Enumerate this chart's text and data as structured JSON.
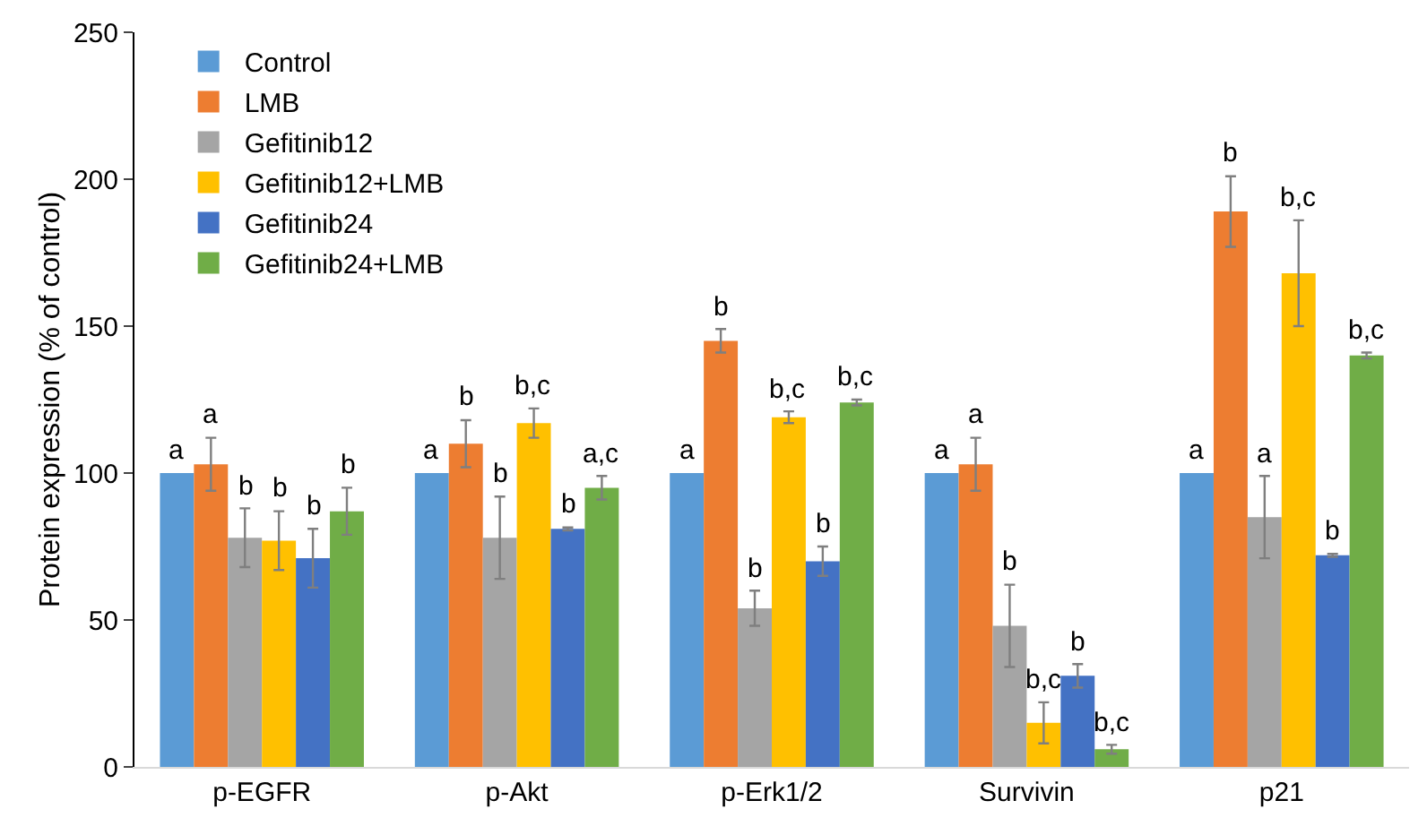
{
  "chart_data": {
    "type": "bar",
    "ylabel": "Protein expression (% of control)",
    "categories": [
      "p-EGFR",
      "p-Akt",
      "p-Erk1/2",
      "Survivin",
      "p21"
    ],
    "series": [
      {
        "name": "Control",
        "color": "#5b9bd5",
        "values": [
          100,
          100,
          100,
          100,
          100
        ],
        "value_labels": [
          "a",
          "a",
          "a",
          "a",
          "a"
        ]
      },
      {
        "name": "LMB",
        "color": "#ed7d31",
        "values": [
          103,
          110,
          145,
          103,
          189
        ],
        "errors": [
          9,
          8,
          4,
          9,
          12
        ],
        "value_labels": [
          "a",
          "b",
          "b",
          "a",
          "b"
        ]
      },
      {
        "name": "Gefitinib12",
        "color": "#a5a5a5",
        "values": [
          78,
          78,
          54,
          48,
          85
        ],
        "errors": [
          10,
          14,
          6,
          14,
          14
        ],
        "value_labels": [
          "b",
          "b",
          "b",
          "b",
          "a"
        ]
      },
      {
        "name": "Gefitinib12+LMB",
        "color": "#ffc000",
        "values": [
          77,
          117,
          119,
          15,
          168
        ],
        "errors": [
          10,
          5,
          2,
          7,
          18
        ],
        "value_labels": [
          "b",
          "b,c",
          "b,c",
          "b,c",
          "b,c"
        ]
      },
      {
        "name": "Gefitinib24",
        "color": "#4472c4",
        "values": [
          71,
          81,
          70,
          31,
          72
        ],
        "errors": [
          10,
          0.5,
          5,
          4,
          0.5
        ],
        "value_labels": [
          "b",
          "b",
          "b",
          "b",
          "b"
        ]
      },
      {
        "name": "Gefitinib24+LMB",
        "color": "#70ad47",
        "values": [
          87,
          95,
          124,
          6,
          140
        ],
        "errors": [
          8,
          4,
          1,
          1.5,
          1
        ],
        "value_labels": [
          "b",
          "a,c",
          "b,c",
          "b,c",
          "b,c"
        ]
      }
    ],
    "ylim": [
      0,
      250
    ],
    "yticks": [
      0,
      50,
      100,
      150,
      200,
      250
    ],
    "grid": false,
    "legend": "top left"
  }
}
